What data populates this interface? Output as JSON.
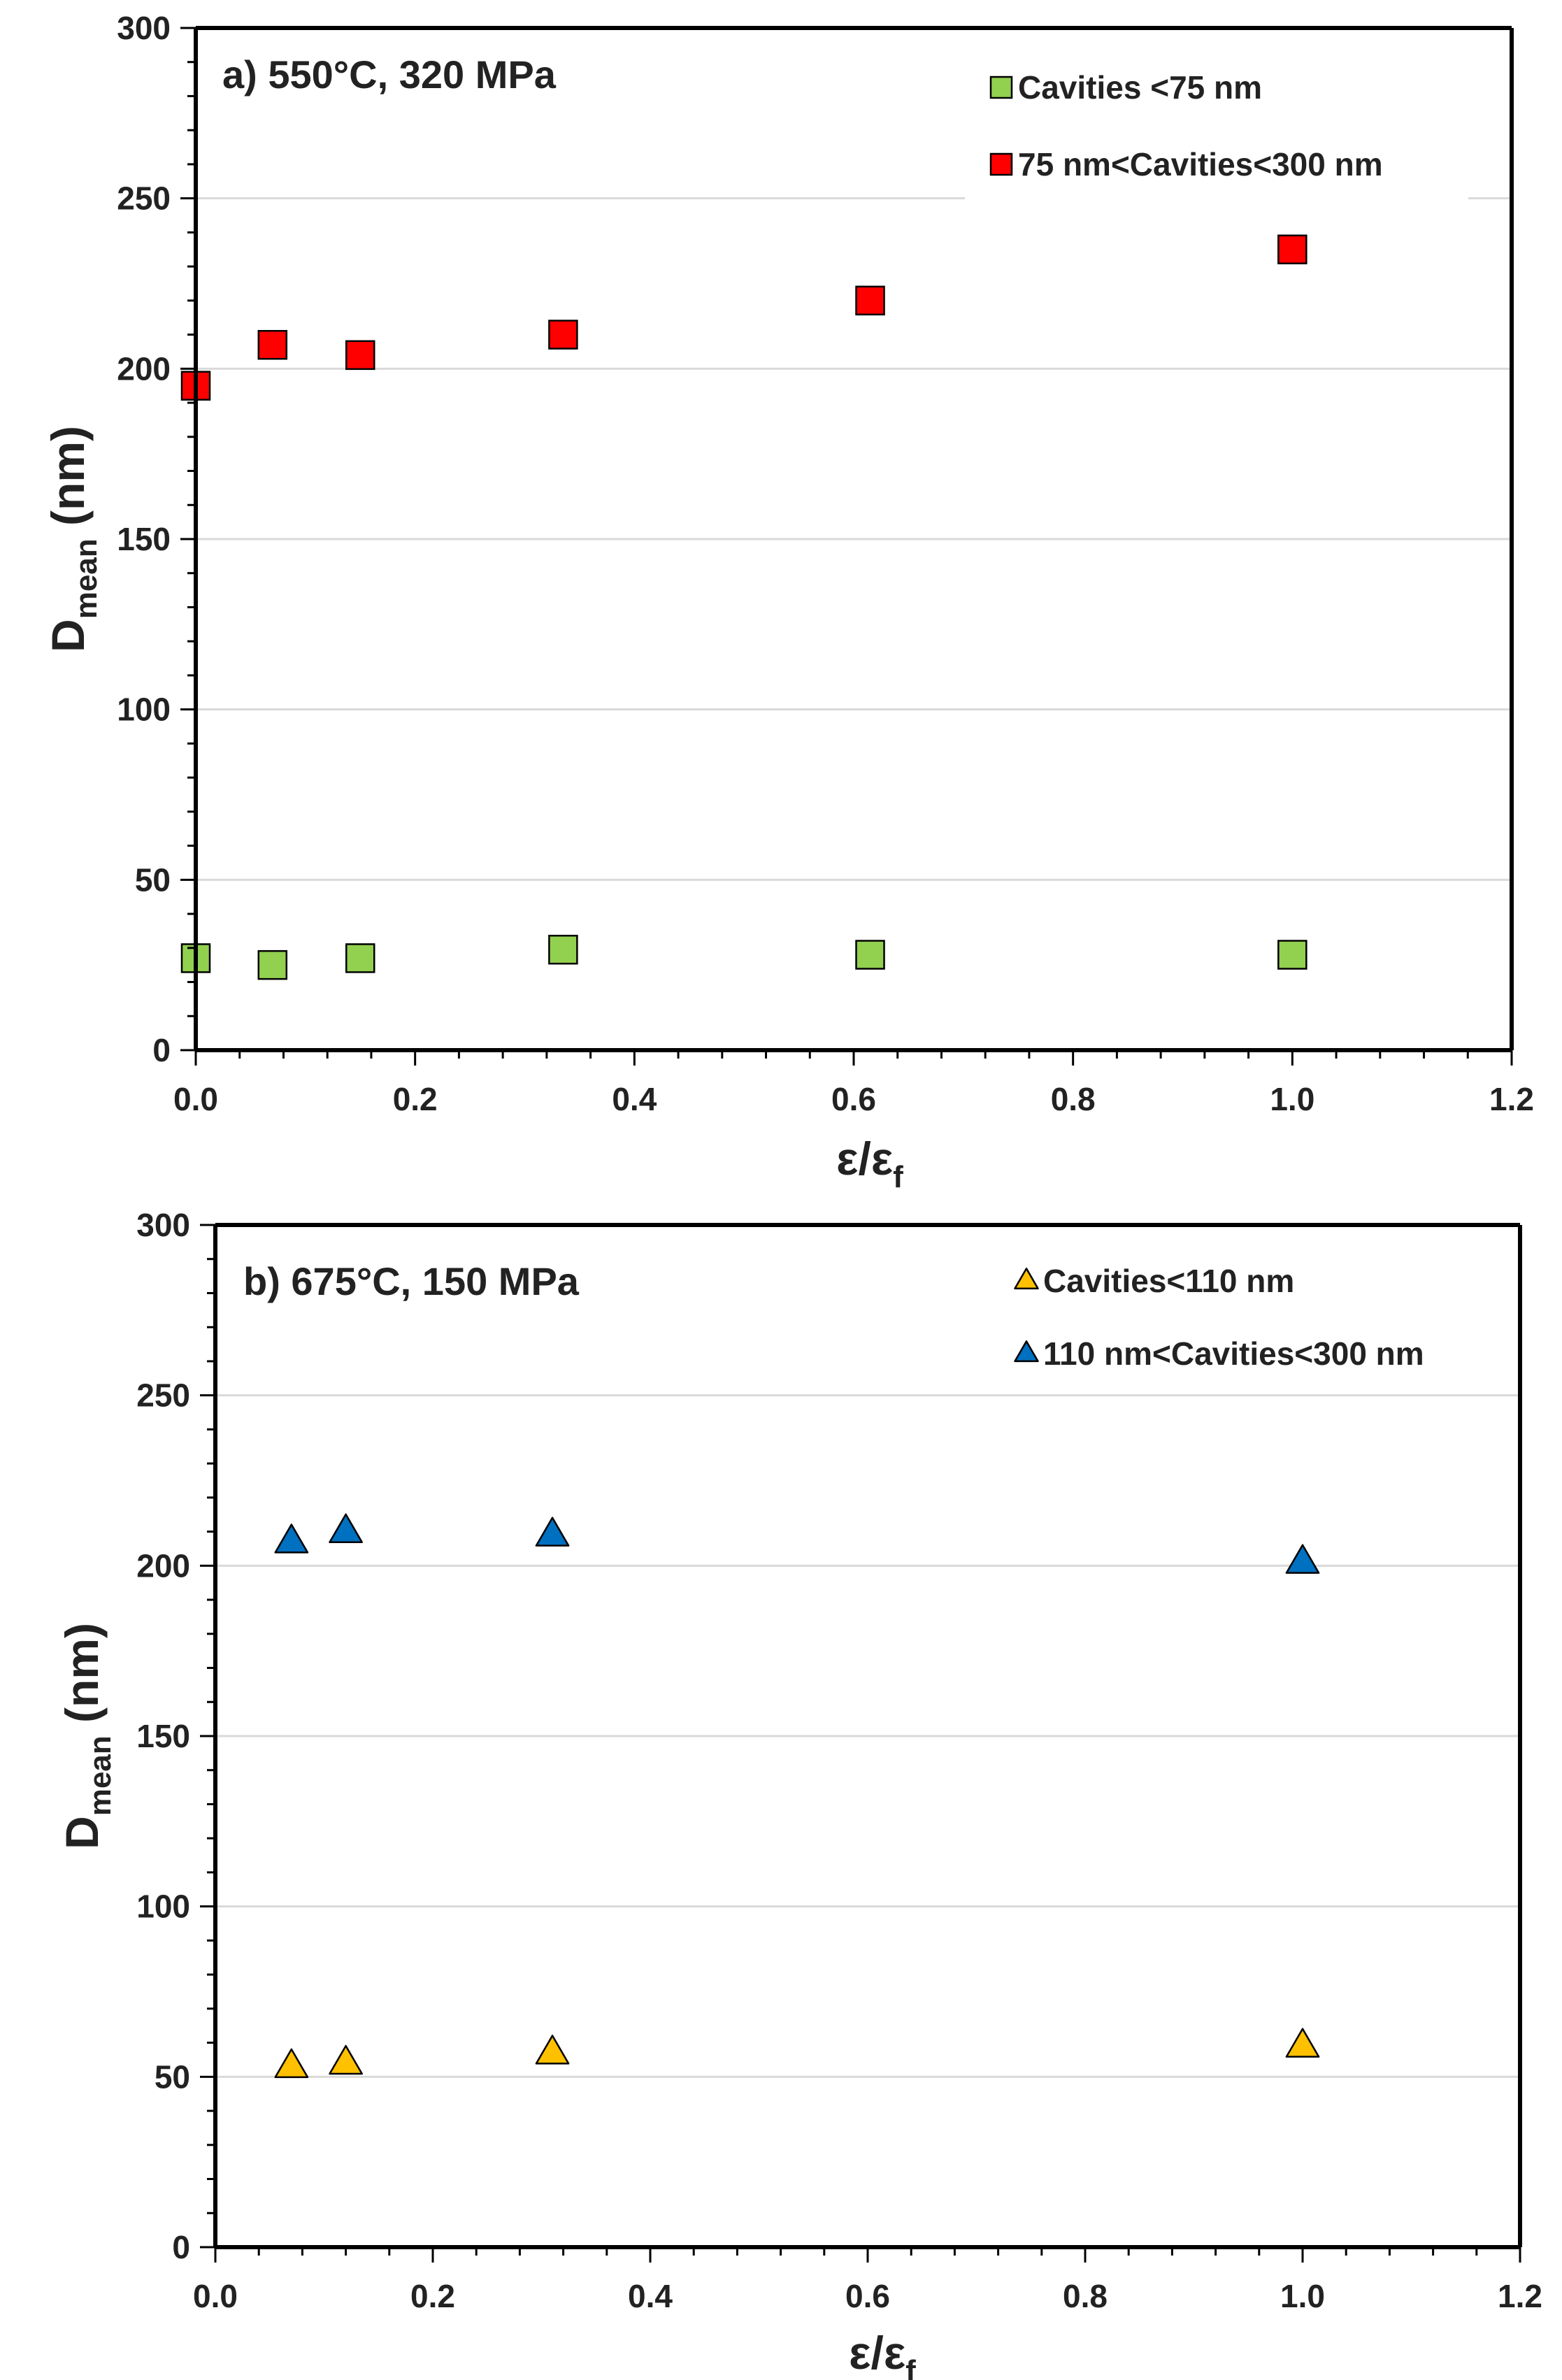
{
  "chart_data": [
    {
      "type": "scatter",
      "title": "a) 550°C, 320 MPa",
      "xlabel": {
        "main": "ε/ε",
        "sub": "f"
      },
      "ylabel": {
        "main": "D",
        "sub": "mean",
        "rest": " (nm)"
      },
      "xlim": [
        0,
        1.2
      ],
      "ylim": [
        0,
        300
      ],
      "xticks": [
        "0.0",
        "0.2",
        "0.4",
        "0.6",
        "0.8",
        "1.0",
        "1.2"
      ],
      "yticks": [
        "0",
        "50",
        "100",
        "150",
        "200",
        "250",
        "300"
      ],
      "grid": true,
      "legend_position": "top-right",
      "series": [
        {
          "name": "Cavities <75 nm",
          "marker": "square",
          "color": "#92d050",
          "x": [
            0.0,
            0.07,
            0.15,
            0.335,
            0.615,
            1.0
          ],
          "y": [
            27,
            25,
            27,
            29.5,
            28,
            28
          ]
        },
        {
          "name": "75 nm<Cavities<300 nm",
          "marker": "square",
          "color": "#ff0000",
          "x": [
            0.0,
            0.07,
            0.15,
            0.335,
            0.615,
            1.0
          ],
          "y": [
            195,
            207,
            204,
            210,
            220,
            235
          ]
        }
      ]
    },
    {
      "type": "scatter",
      "title": "b) 675°C, 150 MPa",
      "xlabel": {
        "main": "ε/ε",
        "sub": "f"
      },
      "ylabel": {
        "main": "D",
        "sub": "mean",
        "rest": " (nm)"
      },
      "xlim": [
        0,
        1.2
      ],
      "ylim": [
        0,
        300
      ],
      "xticks": [
        "0.0",
        "0.2",
        "0.4",
        "0.6",
        "0.8",
        "1.0",
        "1.2"
      ],
      "yticks": [
        "0",
        "50",
        "100",
        "150",
        "200",
        "250",
        "300"
      ],
      "grid": true,
      "legend_position": "top-right",
      "series": [
        {
          "name": "Cavities<110 nm",
          "marker": "triangle",
          "color": "#ffc000",
          "x": [
            0.07,
            0.12,
            0.31,
            1.0
          ],
          "y": [
            53,
            54,
            57,
            59
          ]
        },
        {
          "name": "110 nm<Cavities<300 nm",
          "marker": "triangle",
          "color": "#0070c0",
          "x": [
            0.07,
            0.12,
            0.31,
            1.0
          ],
          "y": [
            207,
            210,
            209,
            201
          ]
        }
      ]
    }
  ]
}
